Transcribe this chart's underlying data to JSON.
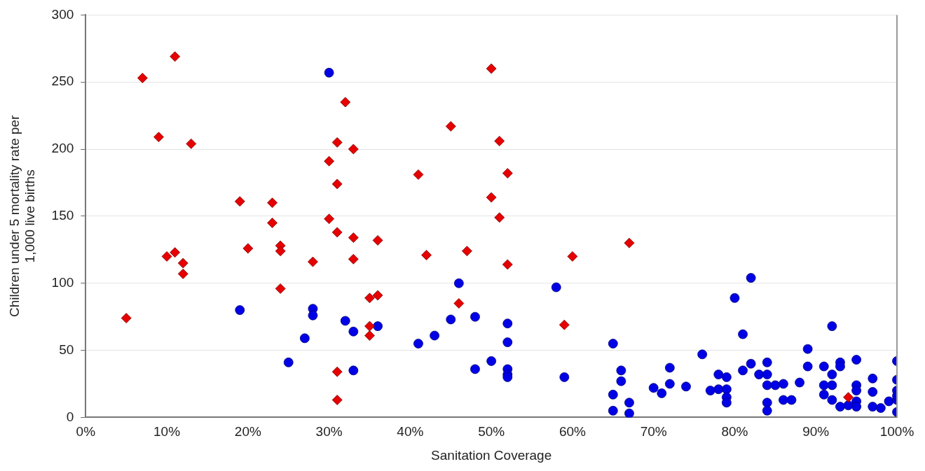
{
  "chart_data": {
    "type": "scatter",
    "xlabel": "Sanitation Coverage",
    "ylabel": "Children under 5 mortality rate per 1,000 live births",
    "xlim": [
      0,
      100
    ],
    "xticks": [
      {
        "value": 0,
        "label": "0%"
      },
      {
        "value": 10,
        "label": "10%"
      },
      {
        "value": 20,
        "label": "20%"
      },
      {
        "value": 30,
        "label": "30%"
      },
      {
        "value": 40,
        "label": "40%"
      },
      {
        "value": 50,
        "label": "50%"
      },
      {
        "value": 60,
        "label": "60%"
      },
      {
        "value": 70,
        "label": "70%"
      },
      {
        "value": 80,
        "label": "80%"
      },
      {
        "value": 90,
        "label": "90%"
      },
      {
        "value": 100,
        "label": "100%"
      }
    ],
    "ylim": [
      0,
      300
    ],
    "yticks": [
      0,
      50,
      100,
      150,
      200,
      250,
      300
    ],
    "grid": "y",
    "legend": false,
    "series": [
      {
        "color": "#e60000",
        "marker": "diamond",
        "x": [
          5,
          7,
          9,
          11,
          13,
          10,
          11,
          12,
          12,
          19,
          20,
          23,
          23,
          24,
          24,
          24,
          28,
          30,
          30,
          31,
          31,
          31,
          32,
          33,
          33,
          33,
          35,
          36,
          35,
          35,
          36,
          31,
          31,
          41,
          42,
          45,
          46,
          47,
          50,
          50,
          51,
          51,
          52,
          52,
          59,
          60,
          67,
          94
        ],
        "values": [
          74,
          253,
          209,
          269,
          204,
          120,
          123,
          115,
          107,
          161,
          126,
          160,
          145,
          128,
          124,
          96,
          116,
          191,
          148,
          205,
          174,
          138,
          235,
          200,
          134,
          118,
          89,
          91,
          68,
          61,
          132,
          34,
          13,
          181,
          121,
          217,
          85,
          124,
          260,
          164,
          206,
          149,
          182,
          114,
          69,
          120,
          130,
          15
        ]
      },
      {
        "color": "#0000e6",
        "marker": "circle",
        "x": [
          30,
          19,
          25,
          27,
          28,
          28,
          32,
          33,
          33,
          36,
          41,
          43,
          45,
          46,
          48,
          48,
          50,
          52,
          52,
          52,
          52,
          52,
          58,
          59,
          65,
          66,
          66,
          65,
          65,
          67,
          67,
          70,
          71,
          72,
          72,
          74,
          76,
          77,
          78,
          79,
          78,
          79,
          79,
          79,
          80,
          82,
          81,
          81,
          82,
          83,
          84,
          84,
          84,
          85,
          86,
          84,
          84,
          86,
          87,
          88,
          89,
          89,
          91,
          91,
          92,
          91,
          93,
          93,
          92,
          92,
          92,
          93,
          94,
          95,
          95,
          97,
          95,
          97,
          95,
          95,
          97,
          98,
          99,
          100,
          100,
          100,
          100,
          100,
          100
        ],
        "values": [
          257,
          80,
          41,
          59,
          81,
          76,
          72,
          64,
          35,
          68,
          55,
          61,
          73,
          100,
          75,
          36,
          42,
          70,
          56,
          36,
          32,
          30,
          97,
          30,
          55,
          35,
          27,
          17,
          5,
          11,
          3,
          22,
          18,
          37,
          25,
          23,
          47,
          20,
          32,
          30,
          21,
          21,
          15,
          11,
          89,
          104,
          62,
          35,
          40,
          32,
          41,
          32,
          24,
          24,
          25,
          11,
          5,
          13,
          13,
          26,
          51,
          38,
          24,
          17,
          68,
          38,
          41,
          38,
          32,
          24,
          13,
          8,
          9,
          43,
          24,
          29,
          20,
          19,
          12,
          8,
          8,
          7,
          12,
          42,
          28,
          20,
          13,
          16,
          4
        ]
      }
    ]
  }
}
